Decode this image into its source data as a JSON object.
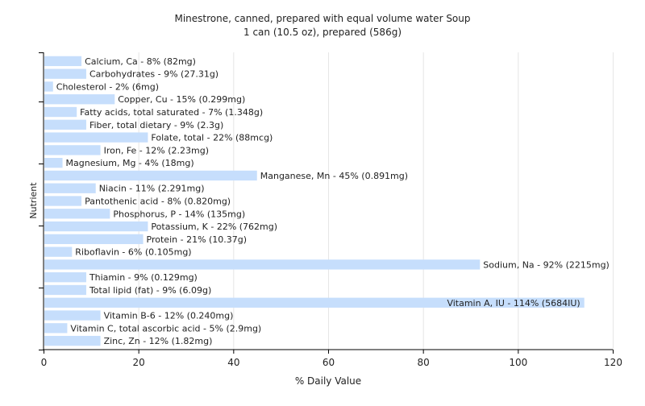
{
  "chart_data": {
    "type": "bar",
    "orientation": "horizontal",
    "title": "Minestrone, canned, prepared with equal volume water Soup",
    "subtitle": "1 can (10.5 oz), prepared (586g)",
    "xlabel": "% Daily Value",
    "ylabel": "Nutrient",
    "xlim": [
      0,
      120
    ],
    "xticks": [
      "0",
      "20",
      "40",
      "60",
      "80",
      "100",
      "120"
    ],
    "grid": true,
    "colors": {
      "bar": "#c6defc",
      "grid": "#e6e6e6",
      "axis": "#000000"
    },
    "bars": [
      {
        "category": "Calcium, Ca",
        "value": 8,
        "label": "Calcium, Ca - 8% (82mg)"
      },
      {
        "category": "Carbohydrates",
        "value": 9,
        "label": "Carbohydrates - 9% (27.31g)"
      },
      {
        "category": "Cholesterol",
        "value": 2,
        "label": "Cholesterol - 2% (6mg)"
      },
      {
        "category": "Copper, Cu",
        "value": 15,
        "label": "Copper, Cu - 15% (0.299mg)"
      },
      {
        "category": "Fatty acids, total saturated",
        "value": 7,
        "label": "Fatty acids, total saturated - 7% (1.348g)"
      },
      {
        "category": "Fiber, total dietary",
        "value": 9,
        "label": "Fiber, total dietary - 9% (2.3g)"
      },
      {
        "category": "Folate, total",
        "value": 22,
        "label": "Folate, total - 22% (88mcg)"
      },
      {
        "category": "Iron, Fe",
        "value": 12,
        "label": "Iron, Fe - 12% (2.23mg)"
      },
      {
        "category": "Magnesium, Mg",
        "value": 4,
        "label": "Magnesium, Mg - 4% (18mg)"
      },
      {
        "category": "Manganese, Mn",
        "value": 45,
        "label": "Manganese, Mn - 45% (0.891mg)"
      },
      {
        "category": "Niacin",
        "value": 11,
        "label": "Niacin - 11% (2.291mg)"
      },
      {
        "category": "Pantothenic acid",
        "value": 8,
        "label": "Pantothenic acid - 8% (0.820mg)"
      },
      {
        "category": "Phosphorus, P",
        "value": 14,
        "label": "Phosphorus, P - 14% (135mg)"
      },
      {
        "category": "Potassium, K",
        "value": 22,
        "label": "Potassium, K - 22% (762mg)"
      },
      {
        "category": "Protein",
        "value": 21,
        "label": "Protein - 21% (10.37g)"
      },
      {
        "category": "Riboflavin",
        "value": 6,
        "label": "Riboflavin - 6% (0.105mg)"
      },
      {
        "category": "Sodium, Na",
        "value": 92,
        "label": "Sodium, Na - 92% (2215mg)"
      },
      {
        "category": "Thiamin",
        "value": 9,
        "label": "Thiamin - 9% (0.129mg)"
      },
      {
        "category": "Total lipid (fat)",
        "value": 9,
        "label": "Total lipid (fat) - 9% (6.09g)"
      },
      {
        "category": "Vitamin A, IU",
        "value": 114,
        "label": "Vitamin A, IU - 114% (5684IU)"
      },
      {
        "category": "Vitamin B-6",
        "value": 12,
        "label": "Vitamin B-6 - 12% (0.240mg)"
      },
      {
        "category": "Vitamin C, total ascorbic acid",
        "value": 5,
        "label": "Vitamin C, total ascorbic acid - 5% (2.9mg)"
      },
      {
        "category": "Zinc, Zn",
        "value": 12,
        "label": "Zinc, Zn - 12% (1.82mg)"
      }
    ]
  }
}
